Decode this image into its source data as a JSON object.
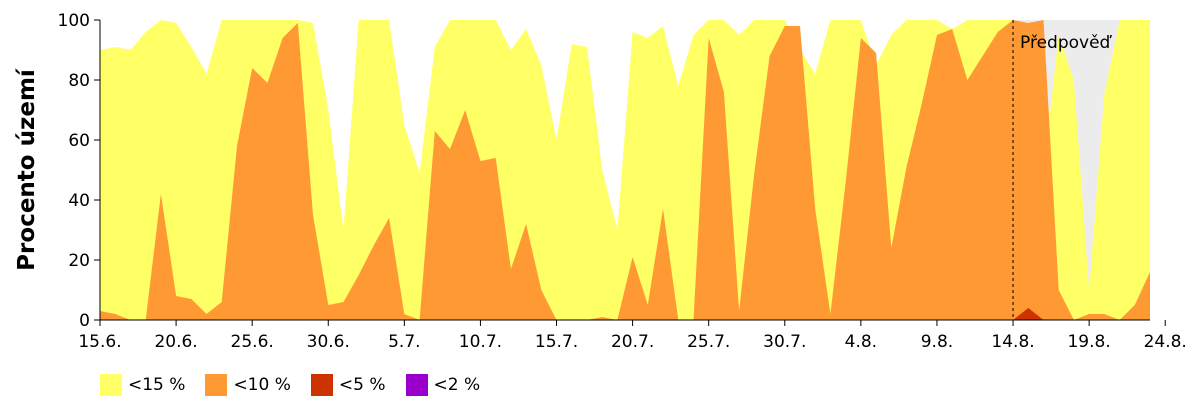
{
  "chart_data": {
    "type": "area",
    "ylabel": "Procento území",
    "ylim": [
      0,
      100
    ],
    "yticks": [
      0,
      20,
      40,
      60,
      80,
      100
    ],
    "xlim": [
      "15.6.",
      "24.8."
    ],
    "xticks": [
      "15.6.",
      "20.6.",
      "25.6.",
      "30.6.",
      "5.7.",
      "10.7.",
      "15.7.",
      "20.7.",
      "25.7.",
      "30.7.",
      "4.8.",
      "9.8.",
      "14.8.",
      "19.8.",
      "24.8."
    ],
    "forecast_label": "Předpověď",
    "forecast_start": "14.8.",
    "grid": false,
    "legend_position": "bottom-left",
    "colors": {
      "lt15": "#ffff66",
      "lt10": "#ff9933",
      "lt5": "#cc3300",
      "lt2": "#9900cc",
      "forecast_bg": "#ececec"
    },
    "series": [
      {
        "name": "<15 %",
        "key": "lt15",
        "values": [
          90,
          91,
          90,
          96,
          100,
          99,
          91,
          82,
          100,
          100,
          100,
          100,
          100,
          100,
          99,
          70,
          30,
          100,
          100,
          100,
          65,
          49,
          91,
          100,
          100,
          100,
          100,
          90,
          97,
          85,
          60,
          92,
          91,
          50,
          30,
          96,
          94,
          98,
          78,
          95,
          100,
          100,
          95,
          100,
          100,
          100,
          90,
          82,
          100,
          100,
          100,
          85,
          95,
          100,
          100,
          100,
          97,
          100,
          100,
          100,
          100,
          97,
          50,
          95,
          80,
          10,
          75,
          100,
          100,
          100
        ]
      },
      {
        "name": "<10 %",
        "key": "lt10",
        "values": [
          3,
          2,
          0,
          0,
          42,
          8,
          7,
          2,
          6,
          58,
          84,
          79,
          94,
          99,
          35,
          5,
          6,
          15,
          25,
          34,
          2,
          0,
          63,
          57,
          70,
          53,
          54,
          17,
          32,
          10,
          0,
          0,
          0,
          1,
          0,
          21,
          5,
          37,
          0,
          0,
          94,
          76,
          3,
          49,
          88,
          98,
          98,
          37,
          2,
          46,
          94,
          89,
          24,
          51,
          72,
          95,
          97,
          80,
          88,
          96,
          100,
          99,
          100,
          10,
          0,
          2,
          2,
          0,
          5,
          16
        ]
      },
      {
        "name": "<5 %",
        "key": "lt5",
        "values": [
          0,
          0,
          0,
          0,
          0,
          0,
          0,
          0,
          0,
          0,
          0,
          0,
          0,
          0,
          0,
          0,
          0,
          0,
          0,
          0,
          0,
          0,
          0,
          0,
          0,
          0,
          0,
          0,
          0,
          0,
          0,
          0,
          0,
          0,
          0,
          0,
          0,
          0,
          0,
          0,
          0,
          0,
          0,
          0,
          0,
          0,
          0,
          0,
          0,
          0,
          0,
          0,
          0,
          0,
          0,
          0,
          0,
          0,
          0,
          0,
          0,
          4,
          0,
          0,
          0,
          0,
          0,
          0,
          0,
          0
        ]
      },
      {
        "name": "<2 %",
        "key": "lt2",
        "values": [
          0,
          0,
          0,
          0,
          0,
          0,
          0,
          0,
          0,
          0,
          0,
          0,
          0,
          0,
          0,
          0,
          0,
          0,
          0,
          0,
          0,
          0,
          0,
          0,
          0,
          0,
          0,
          0,
          0,
          0,
          0,
          0,
          0,
          0,
          0,
          0,
          0,
          0,
          0,
          0,
          0,
          0,
          0,
          0,
          0,
          0,
          0,
          0,
          0,
          0,
          0,
          0,
          0,
          0,
          0,
          0,
          0,
          0,
          0,
          0,
          0,
          0,
          0,
          0,
          0,
          0,
          0,
          0,
          0,
          0
        ]
      }
    ]
  }
}
